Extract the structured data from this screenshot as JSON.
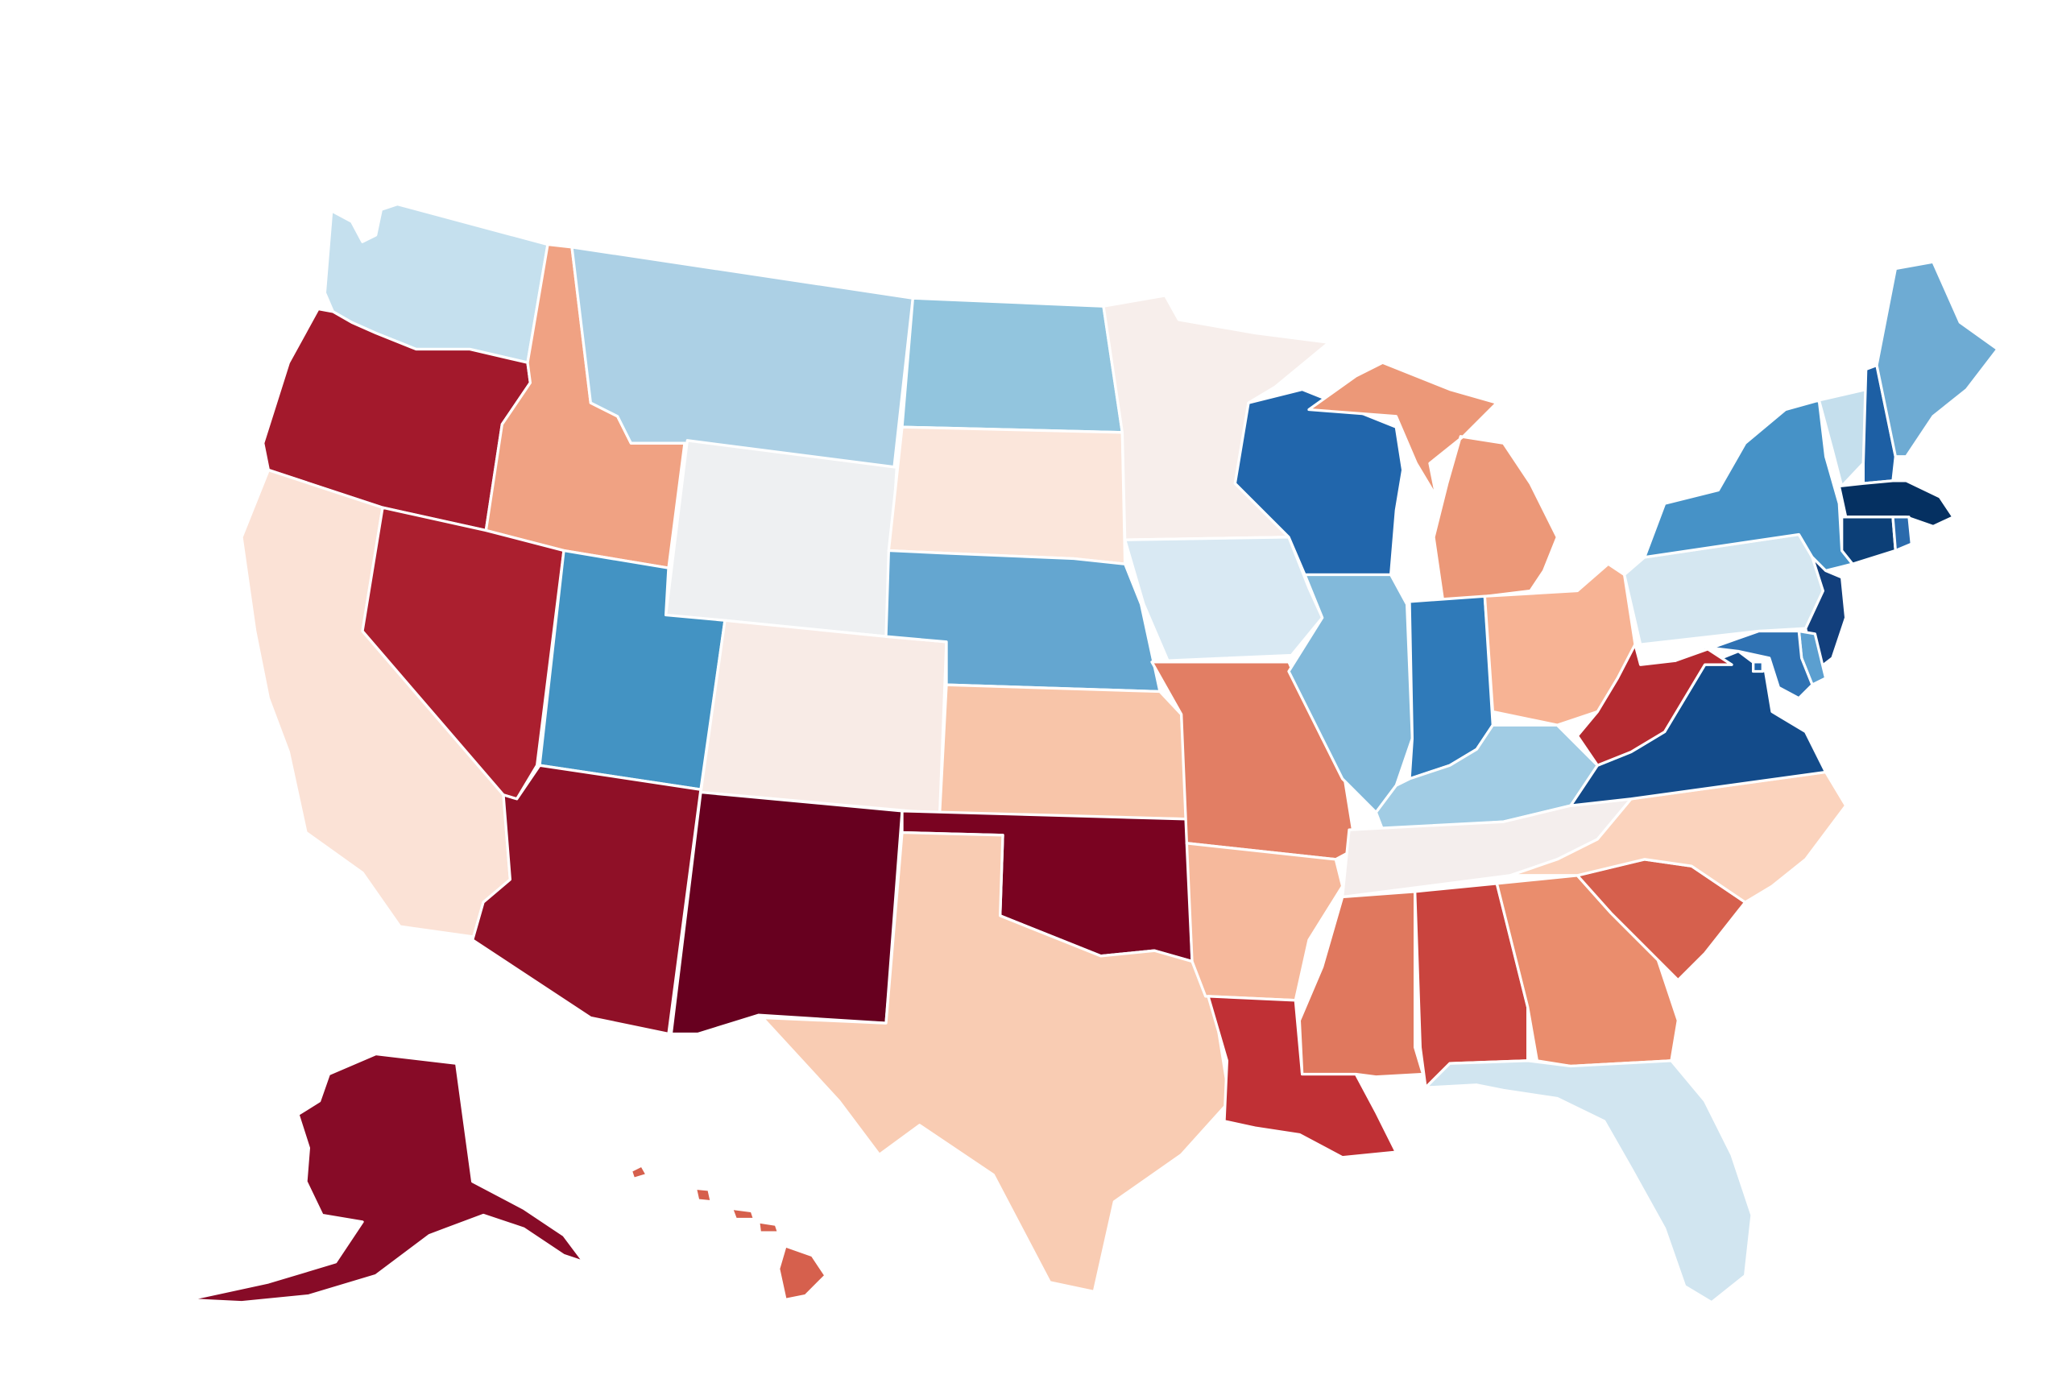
{
  "map": {
    "type": "choropleth",
    "region": "United States",
    "legend": "none",
    "palette": {
      "darkest_red": "#67001f",
      "dark_red": "#870b27",
      "red": "#a3192c",
      "medium_red": "#c43c3c",
      "coral": "#d6604d",
      "salmon": "#e8896c",
      "light_salmon": "#f4a582",
      "peach": "#f9ccb3",
      "light_peach": "#fbe2d6",
      "blush": "#f7ebe6",
      "neutral_gray": "#eef0f2",
      "pale_blue": "#d1e5f0",
      "light_blue": "#acd0e5",
      "sky_blue": "#92c5de",
      "blue": "#6fabd4",
      "medium_blue": "#4393c3",
      "strong_blue": "#2f74b4",
      "dark_blue": "#2166ac",
      "navy": "#134b8a",
      "darkest_navy": "#053061"
    },
    "states": [
      {
        "abbr": "WA",
        "color": "#c5e0ee"
      },
      {
        "abbr": "OR",
        "color": "#a3192c"
      },
      {
        "abbr": "CA",
        "color": "#fbe2d6"
      },
      {
        "abbr": "ID",
        "color": "#f0a283"
      },
      {
        "abbr": "NV",
        "color": "#ab1f2f"
      },
      {
        "abbr": "MT",
        "color": "#acd0e5"
      },
      {
        "abbr": "WY",
        "color": "#eef0f2"
      },
      {
        "abbr": "UT",
        "color": "#4393c3"
      },
      {
        "abbr": "AZ",
        "color": "#8f1027"
      },
      {
        "abbr": "CO",
        "color": "#f8ebe6"
      },
      {
        "abbr": "NM",
        "color": "#67001f"
      },
      {
        "abbr": "ND",
        "color": "#92c5de"
      },
      {
        "abbr": "SD",
        "color": "#fbe6db"
      },
      {
        "abbr": "NE",
        "color": "#64a6d0"
      },
      {
        "abbr": "KS",
        "color": "#f8c5a9"
      },
      {
        "abbr": "OK",
        "color": "#7a0321"
      },
      {
        "abbr": "TX",
        "color": "#f9ccb3"
      },
      {
        "abbr": "MN",
        "color": "#f7eeeb"
      },
      {
        "abbr": "IA",
        "color": "#d9e9f3"
      },
      {
        "abbr": "MO",
        "color": "#e27e64"
      },
      {
        "abbr": "AR",
        "color": "#f6b99c"
      },
      {
        "abbr": "LA",
        "color": "#c03035"
      },
      {
        "abbr": "WI",
        "color": "#2166ac"
      },
      {
        "abbr": "IL",
        "color": "#82b9da"
      },
      {
        "abbr": "MI",
        "color": "#ec9878"
      },
      {
        "abbr": "IN",
        "color": "#2f7ab9"
      },
      {
        "abbr": "OH",
        "color": "#f7b394"
      },
      {
        "abbr": "KY",
        "color": "#a1cce4"
      },
      {
        "abbr": "TN",
        "color": "#f4eeed"
      },
      {
        "abbr": "MS",
        "color": "#e0785e"
      },
      {
        "abbr": "AL",
        "color": "#c9443e"
      },
      {
        "abbr": "GA",
        "color": "#ea8d6d"
      },
      {
        "abbr": "FL",
        "color": "#d1e5f0"
      },
      {
        "abbr": "SC",
        "color": "#d6604d"
      },
      {
        "abbr": "NC",
        "color": "#fbd3bd"
      },
      {
        "abbr": "VA",
        "color": "#134b8a"
      },
      {
        "abbr": "WV",
        "color": "#b42a30"
      },
      {
        "abbr": "PA",
        "color": "#d5e7f1"
      },
      {
        "abbr": "NY",
        "color": "#4692c7"
      },
      {
        "abbr": "VT",
        "color": "#c5dfed"
      },
      {
        "abbr": "NH",
        "color": "#1d5fa4"
      },
      {
        "abbr": "ME",
        "color": "#6eabd3"
      },
      {
        "abbr": "MA",
        "color": "#053061"
      },
      {
        "abbr": "RI",
        "color": "#2a6aac"
      },
      {
        "abbr": "CT",
        "color": "#0c3f77"
      },
      {
        "abbr": "NJ",
        "color": "#123f7c"
      },
      {
        "abbr": "DE",
        "color": "#5b9fd0"
      },
      {
        "abbr": "MD",
        "color": "#2f72b3"
      },
      {
        "abbr": "DC",
        "color": "#2166ac"
      },
      {
        "abbr": "AK",
        "color": "#870b27"
      },
      {
        "abbr": "HI",
        "color": "#d6604d"
      }
    ]
  }
}
